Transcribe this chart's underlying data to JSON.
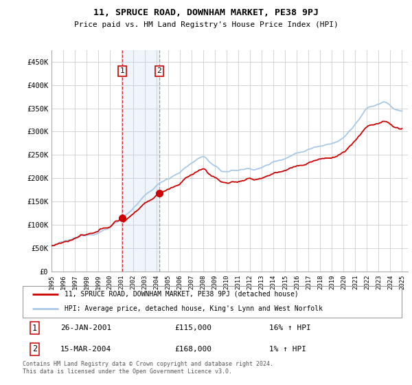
{
  "title": "11, SPRUCE ROAD, DOWNHAM MARKET, PE38 9PJ",
  "subtitle": "Price paid vs. HM Land Registry's House Price Index (HPI)",
  "ylabel_ticks": [
    "£0",
    "£50K",
    "£100K",
    "£150K",
    "£200K",
    "£250K",
    "£300K",
    "£350K",
    "£400K",
    "£450K"
  ],
  "ytick_values": [
    0,
    50000,
    100000,
    150000,
    200000,
    250000,
    300000,
    350000,
    400000,
    450000
  ],
  "ylim": [
    0,
    475000
  ],
  "xlim_start": 1995.0,
  "xlim_end": 2025.5,
  "hpi_color": "#a8c8e8",
  "price_color": "#cc0000",
  "sale1_x": 2001.07,
  "sale1_y": 115000,
  "sale2_x": 2004.21,
  "sale2_y": 168000,
  "legend_price_label": "11, SPRUCE ROAD, DOWNHAM MARKET, PE38 9PJ (detached house)",
  "legend_hpi_label": "HPI: Average price, detached house, King's Lynn and West Norfolk",
  "annotation1_date": "26-JAN-2001",
  "annotation1_price": "£115,000",
  "annotation1_hpi": "16% ↑ HPI",
  "annotation2_date": "15-MAR-2004",
  "annotation2_price": "£168,000",
  "annotation2_hpi": "1% ↑ HPI",
  "footnote": "Contains HM Land Registry data © Crown copyright and database right 2024.\nThis data is licensed under the Open Government Licence v3.0.",
  "background_color": "#ffffff",
  "grid_color": "#cccccc"
}
